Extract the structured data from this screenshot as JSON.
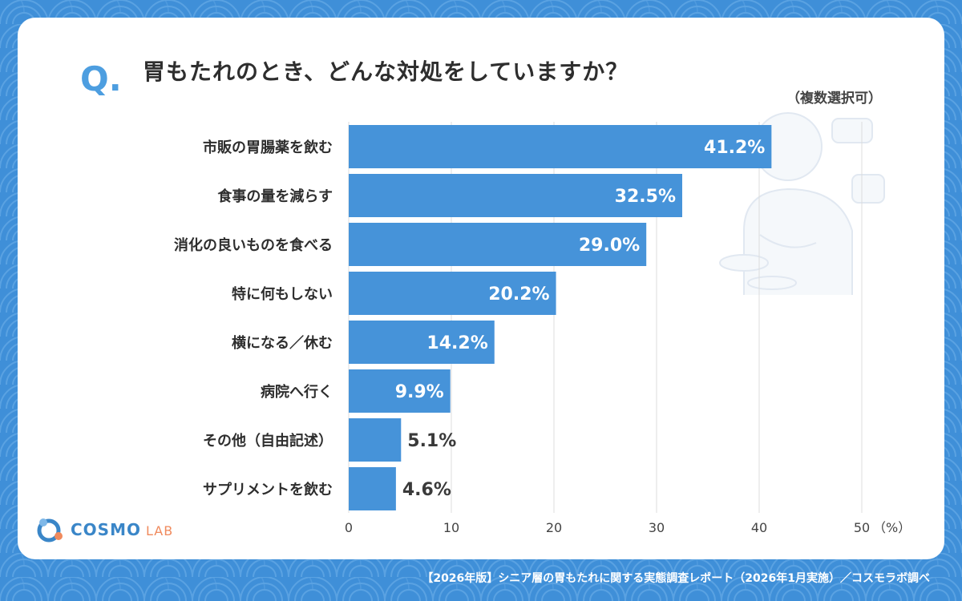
{
  "header": {
    "q_letter": "Q",
    "q_dot": ".",
    "question": "胃もたれのとき、どんな対処をしていますか？",
    "note": "（複数選択可）"
  },
  "chart_data": {
    "type": "bar",
    "orientation": "horizontal",
    "title": "胃もたれのとき、どんな対処をしていますか？",
    "categories": [
      "市販の胃腸薬を飲む",
      "食事の量を減らす",
      "消化の良いものを食べる",
      "特に何もしない",
      "横になる／休む",
      "病院へ行く",
      "その他（自由記述）",
      "サプリメントを飲む"
    ],
    "values": [
      41.2,
      32.5,
      29.0,
      20.2,
      14.2,
      9.9,
      5.1,
      4.6
    ],
    "value_labels": [
      "41.2%",
      "32.5%",
      "29.0%",
      "20.2%",
      "14.2%",
      "9.9%",
      "5.1%",
      "4.6%"
    ],
    "xlim": [
      0,
      50
    ],
    "ticks": [
      "0",
      "10",
      "20",
      "30",
      "40",
      "50"
    ],
    "unit_label": "（%）",
    "grid": true,
    "bar_color": "#4693d9"
  },
  "logo": {
    "brand": "COSMO",
    "sub": "LAB"
  },
  "footer": "【2026年版】シニア層の胃もたれに関する実態調査レポート（2026年1月実施）／コスモラボ調べ",
  "colors": {
    "background": "#3f8fd8",
    "accent": "#4d9ee0",
    "text": "#2e2e2e"
  }
}
